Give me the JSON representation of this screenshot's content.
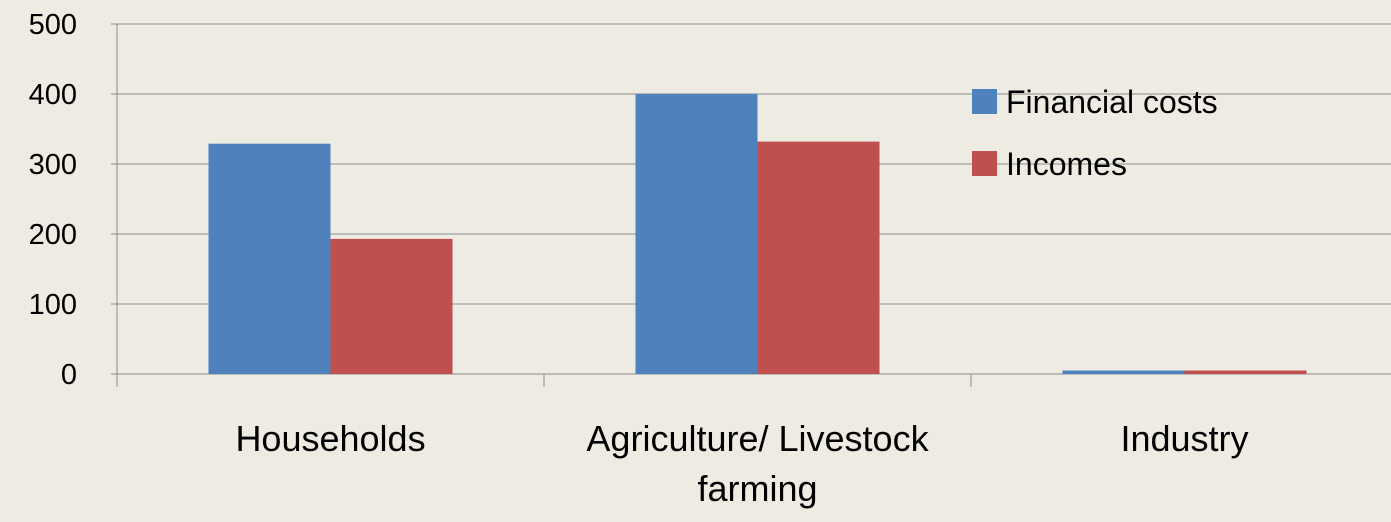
{
  "chart_data": {
    "type": "bar",
    "title": "",
    "xlabel": "",
    "ylabel": "",
    "categories": [
      "Households",
      "Agriculture/ Livestock farming",
      "Industry"
    ],
    "series": [
      {
        "name": "Financial costs",
        "color": "#4F81BD",
        "values": [
          329,
          400,
          5
        ]
      },
      {
        "name": "Incomes",
        "color": "#C0504D",
        "values": [
          193,
          332,
          5
        ]
      }
    ],
    "ylim": [
      0,
      500
    ],
    "yticks": [
      0,
      100,
      200,
      300,
      400,
      500
    ],
    "grid": true,
    "legend": "right"
  }
}
